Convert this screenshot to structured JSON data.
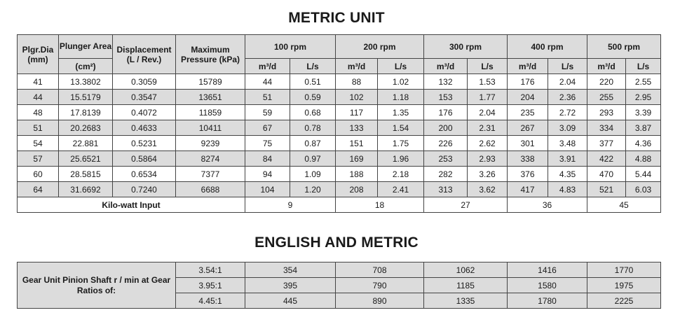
{
  "metric": {
    "title": "METRIC UNIT",
    "headers": {
      "plgr_dia": "Plgr.Dia (mm)",
      "plunger_area": "Plunger Area",
      "plunger_area_unit": "(cm²)",
      "displacement": "Displacement (L / Rev.)",
      "max_pressure": "Maximum Pressure (kPa)",
      "rpm": [
        "100 rpm",
        "200 rpm",
        "300 rpm",
        "400 rpm",
        "500 rpm"
      ],
      "sub_m3d": "m³/d",
      "sub_ls": "L/s"
    },
    "rows": [
      [
        "41",
        "13.3802",
        "0.3059",
        "15789",
        "44",
        "0.51",
        "88",
        "1.02",
        "132",
        "1.53",
        "176",
        "2.04",
        "220",
        "2.55"
      ],
      [
        "44",
        "15.5179",
        "0.3547",
        "13651",
        "51",
        "0.59",
        "102",
        "1.18",
        "153",
        "1.77",
        "204",
        "2.36",
        "255",
        "2.95"
      ],
      [
        "48",
        "17.8139",
        "0.4072",
        "11859",
        "59",
        "0.68",
        "117",
        "1.35",
        "176",
        "2.04",
        "235",
        "2.72",
        "293",
        "3.39"
      ],
      [
        "51",
        "20.2683",
        "0.4633",
        "10411",
        "67",
        "0.78",
        "133",
        "1.54",
        "200",
        "2.31",
        "267",
        "3.09",
        "334",
        "3.87"
      ],
      [
        "54",
        "22.881",
        "0.5231",
        "9239",
        "75",
        "0.87",
        "151",
        "1.75",
        "226",
        "2.62",
        "301",
        "3.48",
        "377",
        "4.36"
      ],
      [
        "57",
        "25.6521",
        "0.5864",
        "8274",
        "84",
        "0.97",
        "169",
        "1.96",
        "253",
        "2.93",
        "338",
        "3.91",
        "422",
        "4.88"
      ],
      [
        "60",
        "28.5815",
        "0.6534",
        "7377",
        "94",
        "1.09",
        "188",
        "2.18",
        "282",
        "3.26",
        "376",
        "4.35",
        "470",
        "5.44"
      ],
      [
        "64",
        "31.6692",
        "0.7240",
        "6688",
        "104",
        "1.20",
        "208",
        "2.41",
        "313",
        "3.62",
        "417",
        "4.83",
        "521",
        "6.03"
      ]
    ],
    "kilowatt_label": "Kilo-watt Input",
    "kilowatt_values": [
      "9",
      "18",
      "27",
      "36",
      "45"
    ]
  },
  "english_metric": {
    "title": "ENGLISH AND METRIC",
    "group_label": "Gear Unit Pinion Shaft r / min at Gear Ratios of:",
    "rows": [
      [
        "3.54:1",
        "354",
        "708",
        "1062",
        "1416",
        "1770"
      ],
      [
        "3.95:1",
        "395",
        "790",
        "1185",
        "1580",
        "1975"
      ],
      [
        "4.45:1",
        "445",
        "890",
        "1335",
        "1780",
        "2225"
      ]
    ]
  }
}
